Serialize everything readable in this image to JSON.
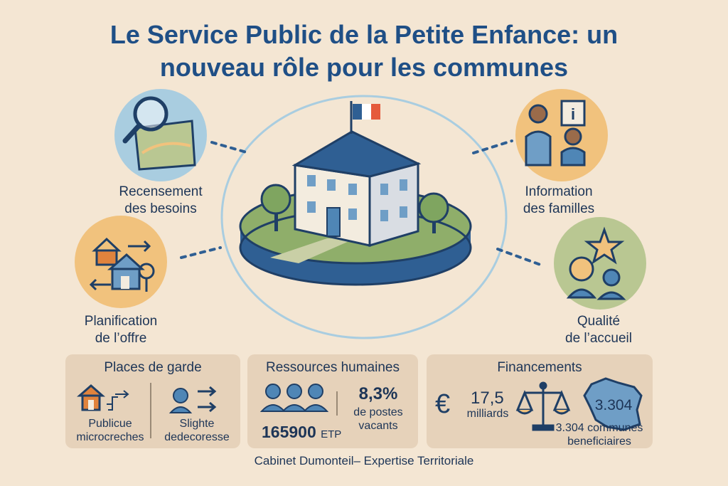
{
  "title": {
    "line1": "Le Service Public de la Petite Enfance: un",
    "line2": "nouveau rôle pour les communes"
  },
  "roles": {
    "needs": {
      "line1": "Recensement",
      "line2": "des besoins"
    },
    "planning": {
      "line1": "Planification",
      "line2": "de l’offre"
    },
    "info": {
      "line1": "Information",
      "line2": "des familles"
    },
    "quality": {
      "line1": "Qualité",
      "line2": "de l’accueil"
    }
  },
  "panels": {
    "places": {
      "title": "Places de garde",
      "left": [
        "Publicue",
        "microcreches"
      ],
      "right": [
        "Slighte",
        "dedecoresse"
      ]
    },
    "hr": {
      "title": "Ressources humaines",
      "etp_value": "165900",
      "etp_unit": "ETP",
      "percent": "8,3%",
      "percent_label": [
        "de postes",
        "vacants"
      ]
    },
    "finance": {
      "title": "Financements",
      "amount": "17,5",
      "amount_unit": "milliards",
      "map_value": "3.304",
      "communes": [
        "3.304 communes",
        "beneficiaires"
      ]
    }
  },
  "footer": "Cabinet Dumonteil– Expertise Territoriale",
  "colors": {
    "title": "#1f4f86",
    "background": "#f4e6d3",
    "panel": "#e6d2ba",
    "roof": "#2f5f93",
    "orange": "#f1c27d",
    "blue_light": "#a9cde0",
    "green_light": "#b9c792"
  }
}
